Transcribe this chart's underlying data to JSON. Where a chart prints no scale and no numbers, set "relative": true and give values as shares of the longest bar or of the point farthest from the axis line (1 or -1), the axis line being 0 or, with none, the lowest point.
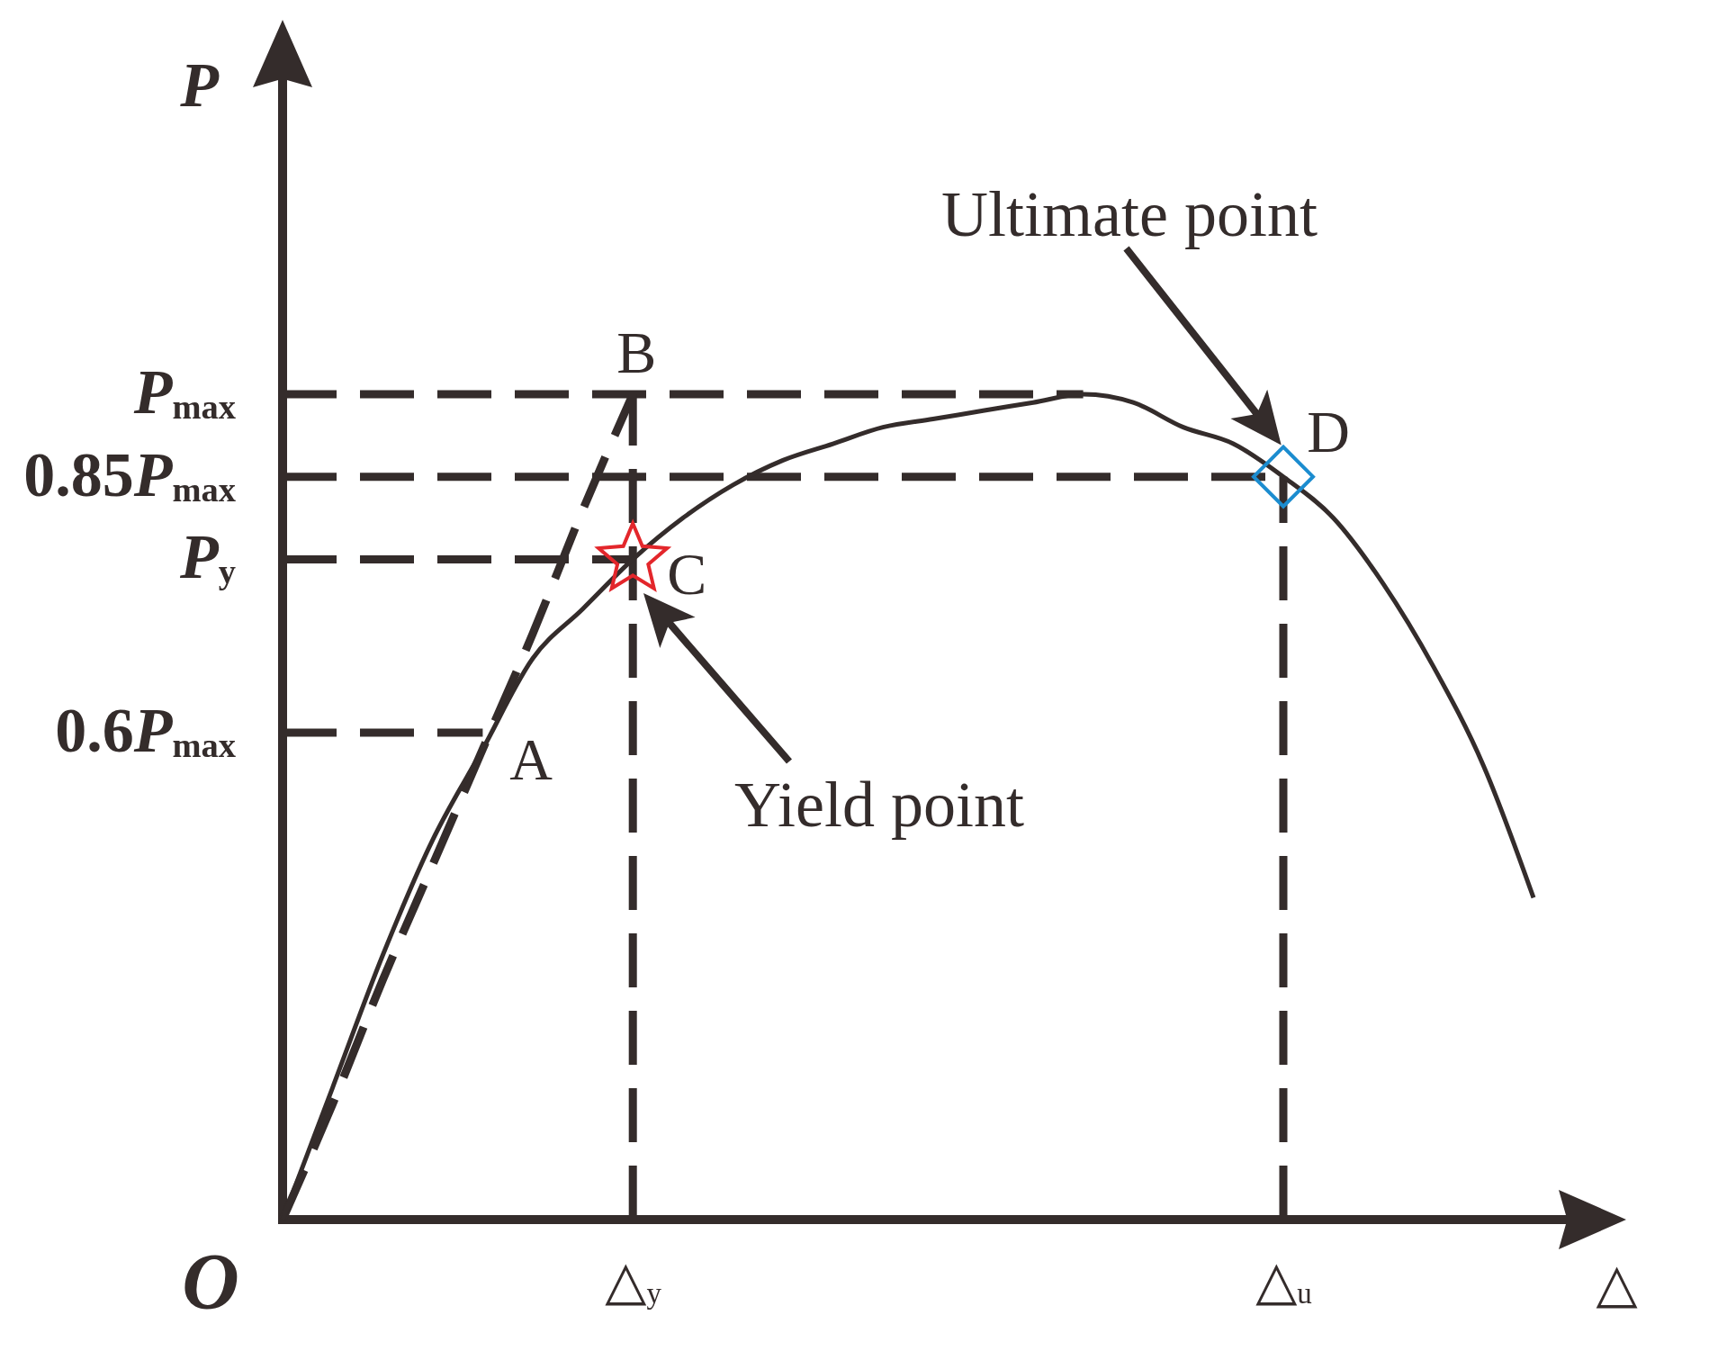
{
  "chart_data": {
    "type": "line",
    "relative": true,
    "xlabel": "△",
    "ylabel": "P",
    "categories": [
      null,
      null,
      null,
      null,
      null,
      null,
      null,
      "△$_{y}$",
      null,
      null,
      null,
      null,
      null,
      null,
      null,
      null,
      null,
      null,
      null,
      null,
      "△$_{u}$",
      null,
      null,
      null,
      null,
      null
    ],
    "series": [
      {
        "type": "line",
        "color": "#342c2b",
        "line_style": "dashed",
        "values": [
          0,
          0.14,
          0.29,
          0.43,
          0.57,
          0.71,
          0.86,
          1,
          null,
          null,
          null,
          null,
          null,
          null,
          null,
          null,
          null,
          null,
          null,
          null,
          null,
          null,
          null,
          null,
          null,
          null
        ]
      },
      {
        "type": "line",
        "color": "#342c2b",
        "line_style": "dashed",
        "values": [
          1,
          1,
          1,
          1,
          1,
          1,
          1,
          1,
          1,
          1,
          1,
          1,
          1,
          1,
          1,
          1,
          1,
          null,
          null,
          null,
          null,
          null,
          null,
          null,
          null,
          null
        ]
      },
      {
        "type": "line",
        "color": "#342c2b",
        "line_style": "dashed",
        "values": [
          0.9,
          0.9,
          0.9,
          0.9,
          0.9,
          0.9,
          0.9,
          0.9,
          0.9,
          0.9,
          0.9,
          0.9,
          0.9,
          0.9,
          0.9,
          0.9,
          0.9,
          0.9,
          0.9,
          0.9,
          0.9,
          null,
          null,
          null,
          null,
          null
        ]
      },
      {
        "type": "line",
        "color": "#342c2b",
        "line_style": "dashed",
        "values": [
          0.8,
          0.8,
          0.8,
          0.8,
          0.8,
          0.8,
          0.8,
          0.8,
          null,
          null,
          null,
          null,
          null,
          null,
          null,
          null,
          null,
          null,
          null,
          null,
          null,
          null,
          null,
          null,
          null,
          null
        ]
      },
      {
        "type": "line",
        "color": "#342c2b",
        "line_style": "dashed",
        "values": [
          0.59,
          0.59,
          0.59,
          0.59,
          0.59,
          null,
          null,
          null,
          null,
          null,
          null,
          null,
          null,
          null,
          null,
          null,
          null,
          null,
          null,
          null,
          null,
          null,
          null,
          null,
          null,
          null
        ]
      },
      {
        "type": "line",
        "color": "#342c2b",
        "line_style": "dashed",
        "x": [
          "△$_{y}$",
          "△$_{y}$"
        ],
        "values": [
          0,
          1
        ]
      },
      {
        "type": "line",
        "color": "#342c2b",
        "line_style": "dashed",
        "x": [
          "△$_{u}$",
          "△$_{u}$"
        ],
        "values": [
          0,
          0.9
        ]
      },
      {
        "type": "line",
        "color": "#342c2b",
        "line_style": "solid",
        "values": [
          0,
          0.16,
          0.32,
          0.46,
          0.57,
          0.68,
          0.74,
          0.8,
          0.85,
          0.89,
          0.92,
          0.94,
          0.96,
          0.97,
          0.98,
          0.99,
          1,
          0.99,
          0.96,
          0.94,
          0.9,
          0.85,
          0.77,
          0.67,
          0.55,
          0.39
        ]
      },
      {
        "type": "scatter",
        "color": "#e3262b",
        "marker": "star",
        "x": [
          "△$_{y}$"
        ],
        "values": [
          0.8
        ]
      },
      {
        "type": "scatter",
        "color": "#1b8ccf",
        "marker": "diamond",
        "x": [
          "△$_{u}$"
        ],
        "values": [
          0.9
        ]
      }
    ],
    "annotations": [
      "O",
      "P$_{max}$",
      "0.85P$_{max}$",
      "P$_{y}$",
      "0.6P$_{max}$",
      "A",
      {
        "text": "B",
        "x": "△$_{y}$",
        "y": 1
      },
      {
        "text": "C",
        "x": "△$_{y}$",
        "y": 0.8
      },
      {
        "text": "D",
        "x": "△$_{u}$",
        "y": 0.9
      },
      "Yield point",
      "Ultimate point"
    ]
  }
}
